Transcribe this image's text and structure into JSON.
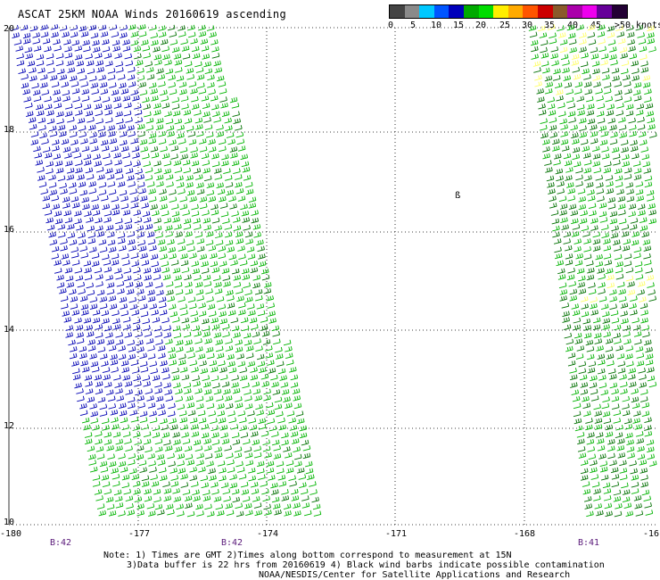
{
  "title": "ASCAT 25KM NOAA Winds 20160619 ascending",
  "legend": {
    "colors": [
      "#444444",
      "#8a8a8a",
      "#00c8ff",
      "#0055ff",
      "#0000bb",
      "#00aa00",
      "#00dd00",
      "#ffee00",
      "#ffaa00",
      "#ff5500",
      "#cc0000",
      "#8a5a2a",
      "#aa00aa",
      "#ee00ee",
      "#660099",
      "#220033"
    ],
    "labels": [
      "0",
      "5",
      "10",
      "15",
      "20",
      "25",
      "30",
      "35",
      "40",
      "45",
      ">50 knots"
    ]
  },
  "y_axis": {
    "labels": [
      "20",
      "18",
      "16",
      "14",
      "12",
      "10"
    ]
  },
  "x_axis": {
    "labels": [
      "-180",
      "-177",
      "-174",
      "-171",
      "-168",
      "-16"
    ]
  },
  "passes": [
    "B:42",
    "B:42",
    "B:41"
  ],
  "footnote": {
    "line1": "Note: 1) Times are GMT 2)Times along bottom correspond to measurement at 15N",
    "line2": "3)Data buffer is 22 hrs from 20160619 4) Black wind barbs indicate possible contamination",
    "line3": "NOAA/NESDIS/Center for Satellite Applications and Research"
  },
  "colors": {
    "blue": "#0000b4",
    "green": "#00b400",
    "dark_green": "#007000",
    "yellow": "#ffff66",
    "grid": "#000000"
  },
  "map_marker": "ß"
}
